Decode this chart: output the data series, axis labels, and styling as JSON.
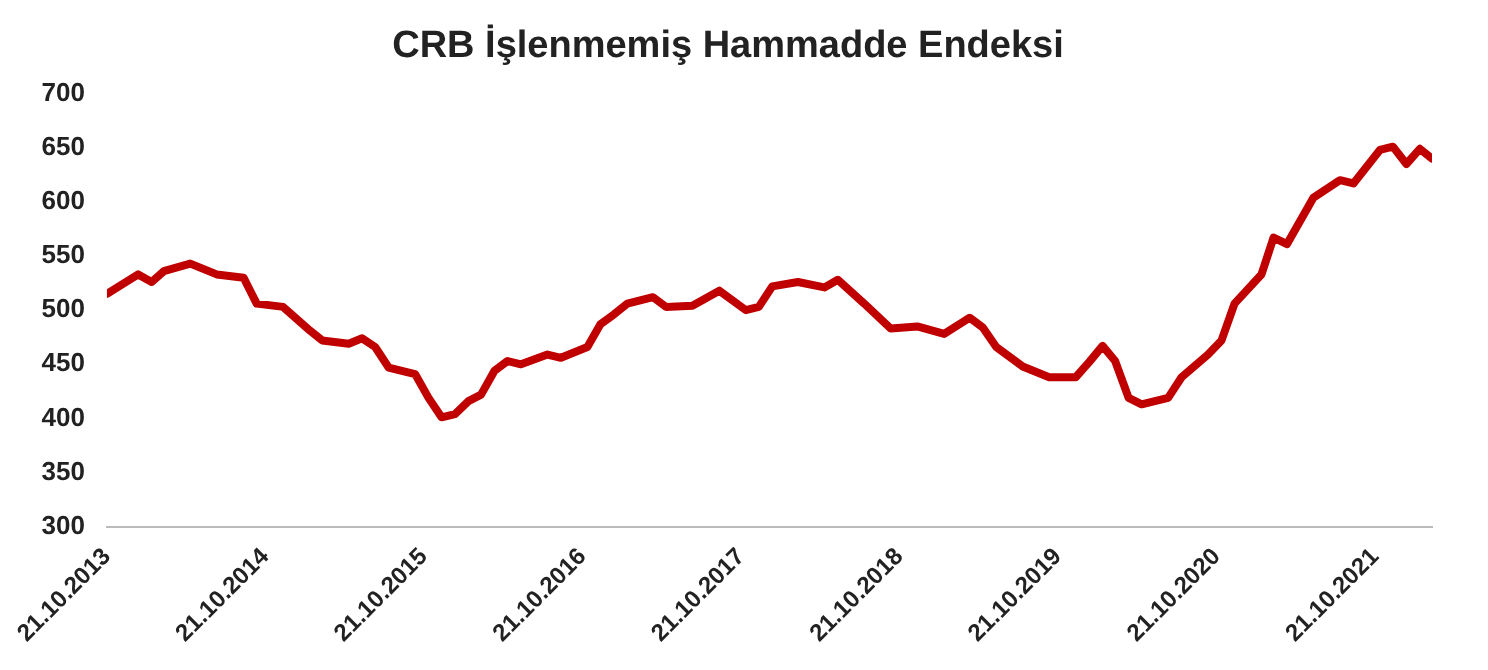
{
  "chart_data": {
    "type": "line",
    "title": "CRB İşlenmemiş Hammadde Endeksi",
    "x": [
      "2013-10-21",
      "2014-01",
      "2014-02",
      "2014-03",
      "2014-05",
      "2014-07",
      "2014-09",
      "2014-10",
      "2014-12",
      "2015-02",
      "2015-03",
      "2015-05",
      "2015-06",
      "2015-07",
      "2015-08",
      "2015-10",
      "2015-11",
      "2015-12",
      "2016-01",
      "2016-02",
      "2016-03",
      "2016-04",
      "2016-05",
      "2016-06",
      "2016-08",
      "2016-09",
      "2016-11",
      "2016-12",
      "2017-01",
      "2017-02",
      "2017-04",
      "2017-05",
      "2017-07",
      "2017-09",
      "2017-11",
      "2017-12",
      "2018-01",
      "2018-03",
      "2018-05",
      "2018-06",
      "2018-08",
      "2018-10",
      "2018-12",
      "2019-02",
      "2019-04",
      "2019-05",
      "2019-06",
      "2019-08",
      "2019-10",
      "2019-12",
      "2020-01",
      "2020-02",
      "2020-03",
      "2020-04",
      "2020-05",
      "2020-07",
      "2020-08",
      "2020-10",
      "2020-11",
      "2020-12",
      "2021-02",
      "2021-03",
      "2021-04",
      "2021-06",
      "2021-08",
      "2021-09",
      "2021-11",
      "2021-12",
      "2022-01",
      "2022-02",
      "2022-03"
    ],
    "series": [
      {
        "color": "#c00000",
        "values": [
          515,
          533,
          526,
          536,
          543,
          533,
          530,
          506,
          503,
          481,
          472,
          469,
          474,
          466,
          447,
          441,
          419,
          401,
          404,
          416,
          422,
          444,
          453,
          450,
          459,
          456,
          466,
          487,
          496,
          506,
          512,
          503,
          504,
          518,
          500,
          503,
          522,
          526,
          521,
          528,
          506,
          483,
          485,
          478,
          493,
          484,
          466,
          448,
          438,
          438,
          452,
          467,
          453,
          419,
          413,
          419,
          438,
          459,
          472,
          506,
          533,
          567,
          561,
          604,
          620,
          617,
          648,
          651,
          635,
          649,
          640
        ]
      }
    ],
    "xlim": [
      "2013-10-21",
      "2022-03"
    ],
    "xticks": [
      {
        "value": "2013-10-21",
        "label": "21.10.2013"
      },
      {
        "value": "2014-10-21",
        "label": "21.10.2014"
      },
      {
        "value": "2015-10-21",
        "label": "21.10.2015"
      },
      {
        "value": "2016-10-21",
        "label": "21.10.2016"
      },
      {
        "value": "2017-10-21",
        "label": "21.10.2017"
      },
      {
        "value": "2018-10-21",
        "label": "21.10.2018"
      },
      {
        "value": "2019-10-21",
        "label": "21.10.2019"
      },
      {
        "value": "2020-10-21",
        "label": "21.10.2020"
      },
      {
        "value": "2021-10-21",
        "label": "21.10.2021"
      }
    ],
    "ylim": [
      300,
      700
    ],
    "yticks": [
      300,
      350,
      400,
      450,
      500,
      550,
      600,
      650,
      700
    ],
    "grid": false,
    "legend": false,
    "marker": "none",
    "line_style": "solid"
  }
}
